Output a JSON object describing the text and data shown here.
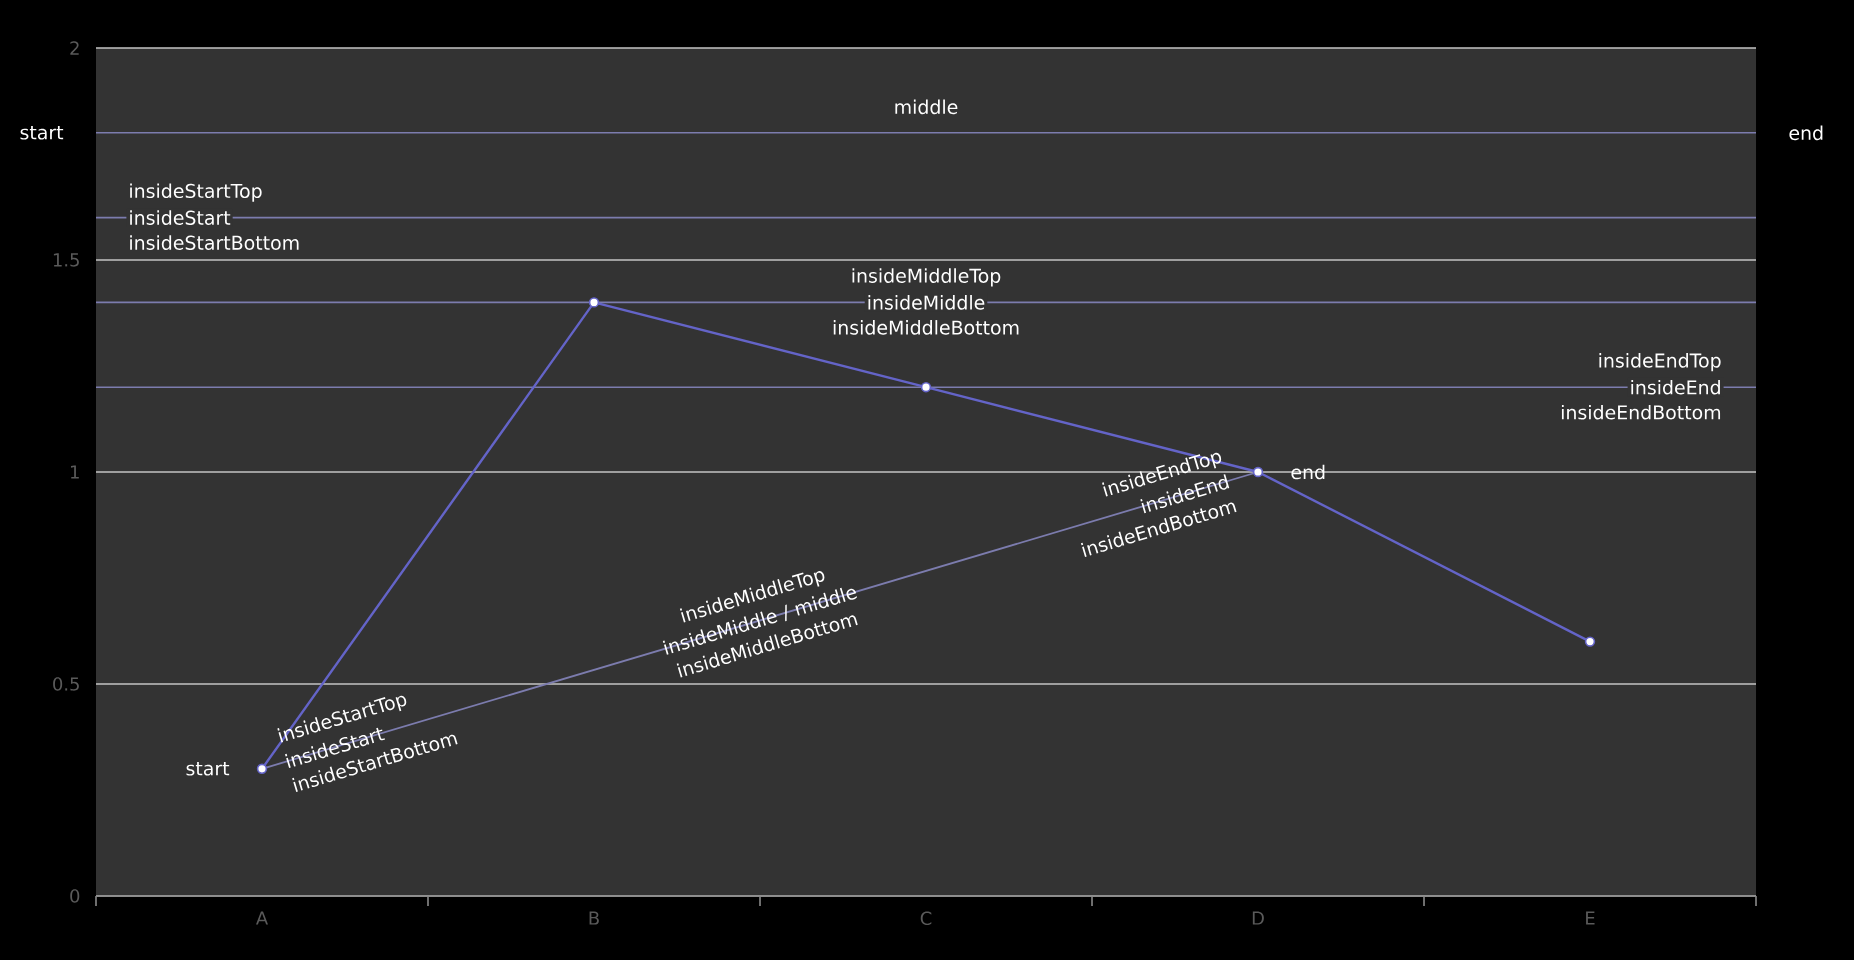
{
  "chart_data": {
    "type": "line",
    "categories": [
      "A",
      "B",
      "C",
      "D",
      "E"
    ],
    "series": [
      {
        "color": "#6464c8",
        "values": [
          0.3,
          1.4,
          1.2,
          1,
          0.6
        ]
      },
      {
        "type": "line",
        "marker": "none",
        "x": [
          "A",
          "D"
        ],
        "values": [
          0.3,
          1
        ],
        "color": "#7c7cae"
      }
    ],
    "ylim": [
      0,
      2
    ],
    "yticks": [
      0,
      0.5,
      1,
      1.5,
      2
    ],
    "grid": "y",
    "marker": "circle",
    "ref_lines": [
      {
        "axis": "y",
        "value": 1.8,
        "label": "middle",
        "color": "#7c7cae"
      },
      {
        "axis": "y",
        "value": 1.6,
        "label": "insideStart",
        "color": "#7c7cae"
      },
      {
        "axis": "y",
        "value": 1.4,
        "label": "insideMiddle",
        "color": "#7c7cae"
      },
      {
        "axis": "y",
        "value": 1.2,
        "label": "insideEnd",
        "color": "#7c7cae"
      }
    ],
    "annotations": [
      "start",
      "end",
      "insideStartTop",
      "insideStartBottom",
      "insideMiddleTop",
      "insideMiddleBottom",
      "insideEndTop",
      "insideEndBottom",
      {
        "text": "start",
        "x": "A",
        "y": 0.3
      },
      {
        "text": "end",
        "x": "D",
        "y": 1
      },
      "insideStartTop",
      "insideStart",
      "insideStartBottom",
      "insideMiddleTop",
      "insideMiddle / middle",
      "insideMiddleBottom",
      "insideEndTop",
      "insideEnd",
      "insideEndBottom"
    ]
  }
}
